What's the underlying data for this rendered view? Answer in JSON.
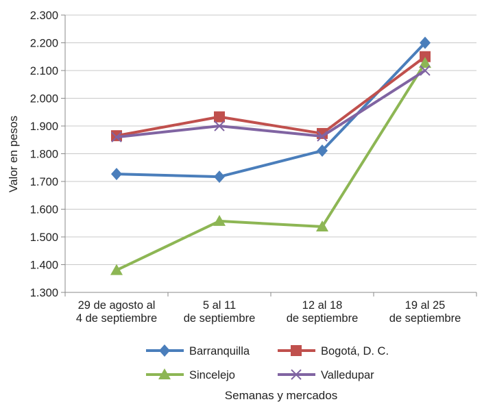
{
  "chart_data": {
    "type": "line",
    "ylabel": "Valor en pesos",
    "xlabel": "Semanas y mercados",
    "ylim": [
      1300,
      2300
    ],
    "ytick_step": 100,
    "ytick_labels": [
      "1.300",
      "1.400",
      "1.500",
      "1.600",
      "1.700",
      "1.800",
      "1.900",
      "2.000",
      "2.100",
      "2.200",
      "2.300"
    ],
    "categories": [
      [
        "29 de agosto al",
        "4 de septiembre"
      ],
      [
        "5 al 11",
        "de septiembre"
      ],
      [
        "12 al 18",
        "de septiembre"
      ],
      [
        "19 al 25",
        "de septiembre"
      ]
    ],
    "grid": "horizontal",
    "legend_position": "bottom",
    "series": [
      {
        "name": "Barranquilla",
        "color": "#4a7ebb",
        "marker": "diamond",
        "values": [
          1727,
          1717,
          1811,
          2200
        ]
      },
      {
        "name": "Bogotá, D. C.",
        "color": "#c0504d",
        "marker": "square",
        "values": [
          1865,
          1933,
          1873,
          2150
        ]
      },
      {
        "name": "Sincelejo",
        "color": "#8db654",
        "marker": "triangle",
        "values": [
          1380,
          1557,
          1537,
          2127
        ]
      },
      {
        "name": "Valledupar",
        "color": "#8064a2",
        "marker": "x",
        "values": [
          1860,
          1900,
          1863,
          2100
        ]
      }
    ]
  }
}
